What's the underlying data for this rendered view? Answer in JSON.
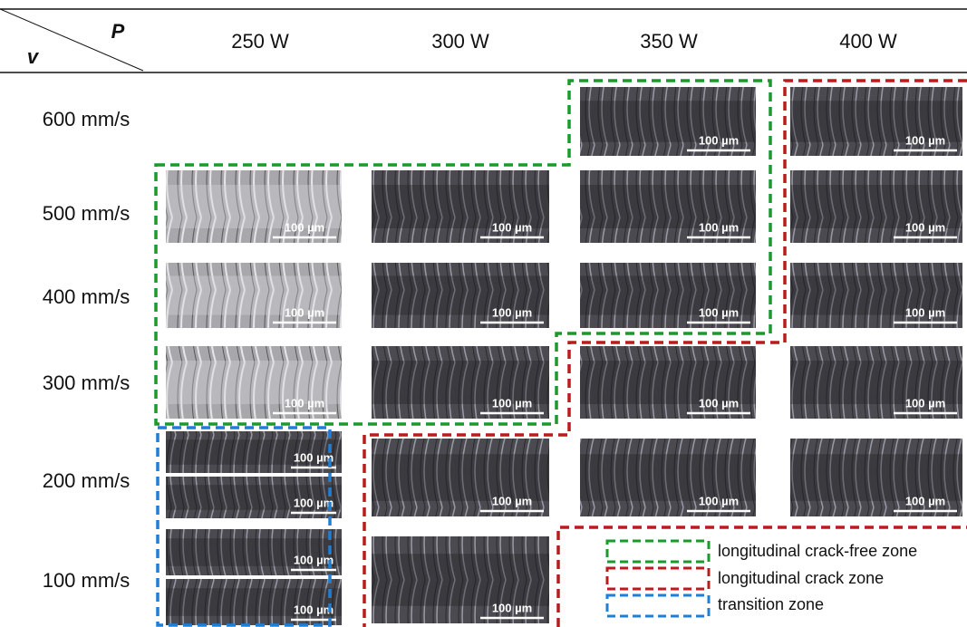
{
  "header": {
    "v": "v",
    "p": "P",
    "columns": [
      "250 W",
      "300 W",
      "350 W",
      "400 W"
    ]
  },
  "rows": [
    {
      "label": "600 mm/s",
      "cells": [
        [],
        [],
        [
          "100 µm"
        ],
        [
          "100 µm"
        ]
      ]
    },
    {
      "label": "500 mm/s",
      "cells": [
        [
          "100 µm"
        ],
        [
          "100 µm"
        ],
        [
          "100 µm"
        ],
        [
          "100 µm"
        ]
      ]
    },
    {
      "label": "400 mm/s",
      "cells": [
        [
          "100 µm"
        ],
        [
          "100 µm"
        ],
        [
          "100 µm"
        ],
        [
          "100 µm"
        ]
      ]
    },
    {
      "label": "300 mm/s",
      "cells": [
        [
          "100 µm"
        ],
        [
          "100 µm"
        ],
        [
          "100 µm"
        ],
        [
          "100 µm"
        ]
      ]
    },
    {
      "label": "200 mm/s",
      "cells": [
        [
          "100 µm",
          "100 µm"
        ],
        [
          "100 µm"
        ],
        [
          "100 µm"
        ],
        [
          "100 µm"
        ]
      ]
    },
    {
      "label": "100 mm/s",
      "cells": [
        [
          "100 µm",
          "100 µm"
        ],
        [
          "100 µm"
        ],
        [],
        []
      ]
    }
  ],
  "legend": [
    "longitudinal crack-free zone",
    "longitudinal crack zone",
    "transition zone"
  ]
}
